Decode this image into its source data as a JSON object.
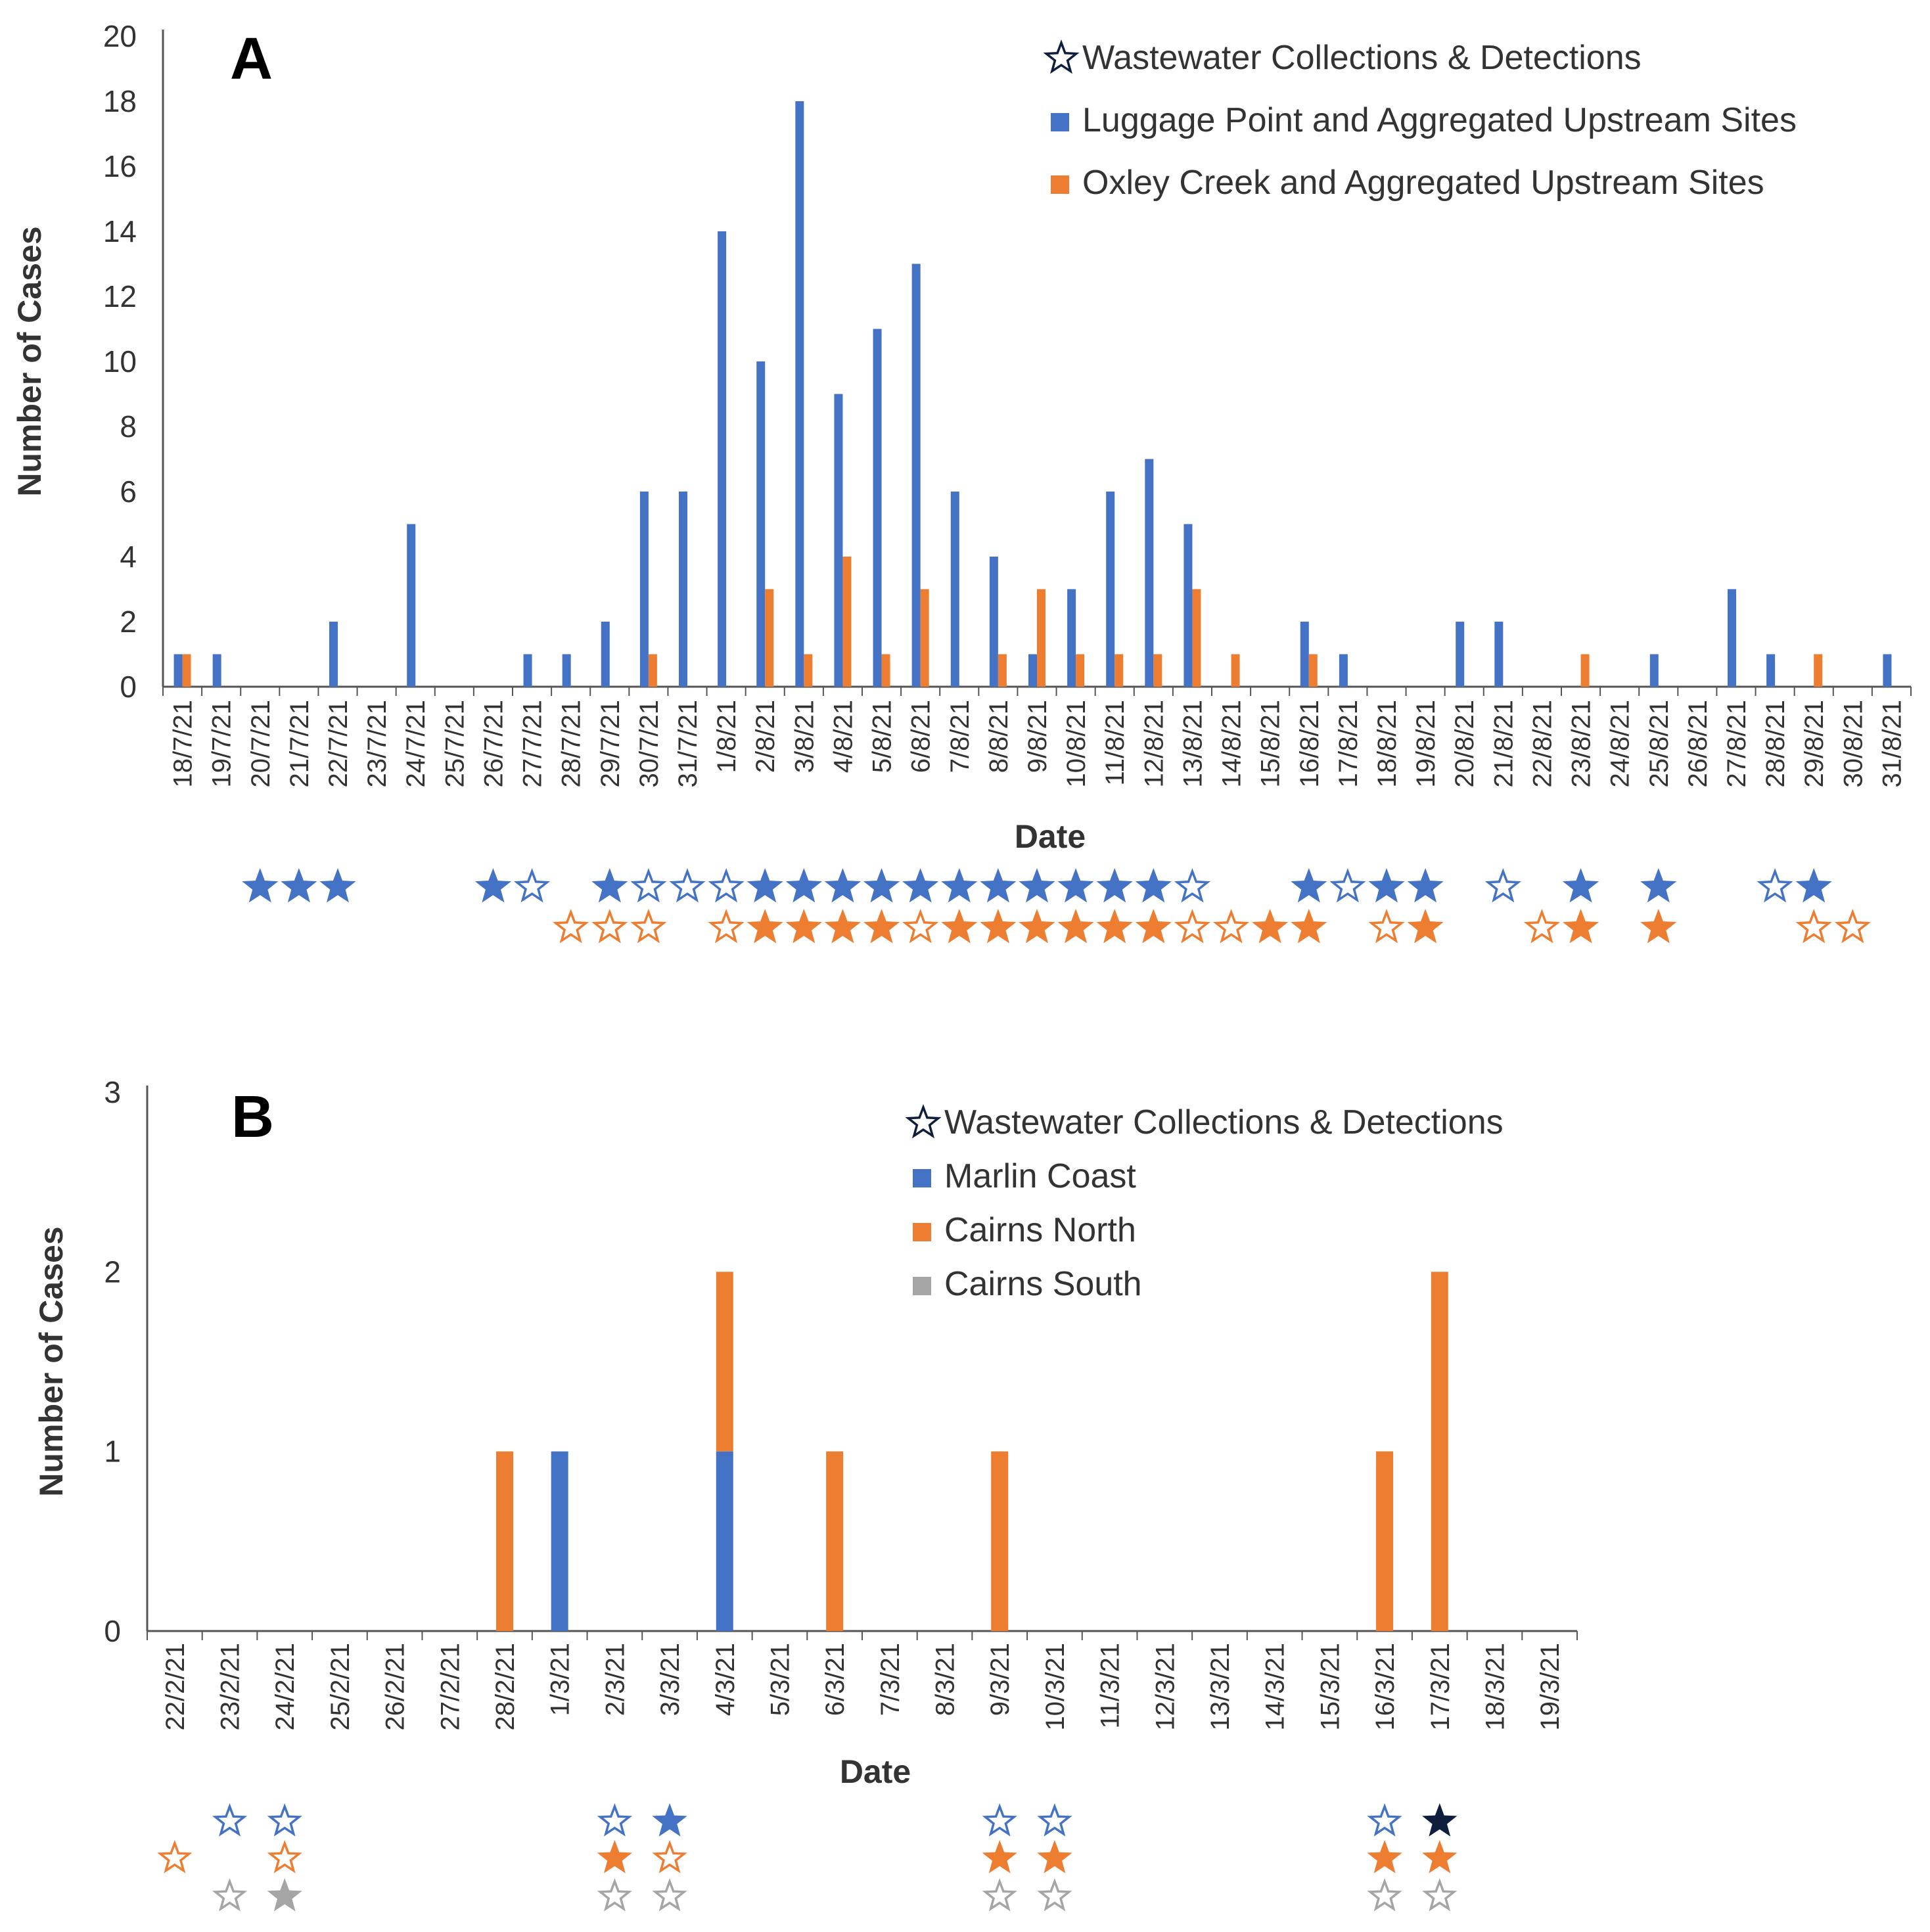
{
  "colors": {
    "blue": "#4472C4",
    "orange": "#ED7D31",
    "gray": "#A5A5A5",
    "navy": "#0F1E3C",
    "axis": "#555555",
    "text": "#333333"
  },
  "chart_data": [
    {
      "id": "A",
      "type": "bar",
      "panel_label": "A",
      "ylabel": "Number of Cases",
      "xlabel": "Date",
      "ylim": [
        0,
        20
      ],
      "yticks": [
        0,
        2,
        4,
        6,
        8,
        10,
        12,
        14,
        16,
        18,
        20
      ],
      "categories": [
        "18/7/21",
        "19/7/21",
        "20/7/21",
        "21/7/21",
        "22/7/21",
        "23/7/21",
        "24/7/21",
        "25/7/21",
        "26/7/21",
        "27/7/21",
        "28/7/21",
        "29/7/21",
        "30/7/21",
        "31/7/21",
        "1/8/21",
        "2/8/21",
        "3/8/21",
        "4/8/21",
        "5/8/21",
        "6/8/21",
        "7/8/21",
        "8/8/21",
        "9/8/21",
        "10/8/21",
        "11/8/21",
        "12/8/21",
        "13/8/21",
        "14/8/21",
        "15/8/21",
        "16/8/21",
        "17/8/21",
        "18/8/21",
        "19/8/21",
        "20/8/21",
        "21/8/21",
        "22/8/21",
        "23/8/21",
        "24/8/21",
        "25/8/21",
        "26/8/21",
        "27/8/21",
        "28/8/21",
        "29/8/21",
        "30/8/21",
        "31/8/21"
      ],
      "legend_title": "Wastewater Collections & Detections",
      "series": [
        {
          "name": "Luggage Point and Aggregated Upstream Sites",
          "color": "blue",
          "values": [
            1,
            1,
            0,
            0,
            2,
            0,
            5,
            0,
            0,
            1,
            1,
            2,
            6,
            6,
            14,
            10,
            18,
            9,
            11,
            13,
            6,
            4,
            1,
            3,
            6,
            7,
            5,
            0,
            0,
            2,
            1,
            0,
            0,
            2,
            2,
            0,
            0,
            0,
            1,
            0,
            3,
            1,
            0,
            0,
            1
          ]
        },
        {
          "name": "Oxley Creek and Aggregated Upstream Sites",
          "color": "orange",
          "values": [
            1,
            0,
            0,
            0,
            0,
            0,
            0,
            0,
            0,
            0,
            0,
            0,
            1,
            0,
            0,
            3,
            1,
            4,
            1,
            3,
            0,
            1,
            3,
            1,
            1,
            1,
            3,
            1,
            0,
            1,
            0,
            0,
            0,
            0,
            0,
            0,
            1,
            0,
            0,
            0,
            0,
            0,
            1,
            0,
            0
          ]
        }
      ],
      "star_rows": [
        {
          "series": "Luggage Point and Aggregated Upstream Sites",
          "color": "blue",
          "stars": [
            [
              2,
              "detected"
            ],
            [
              3,
              "detected"
            ],
            [
              4,
              "detected"
            ],
            [
              8,
              "detected"
            ],
            [
              9,
              "collected"
            ],
            [
              11,
              "detected"
            ],
            [
              12,
              "collected"
            ],
            [
              13,
              "collected"
            ],
            [
              14,
              "collected"
            ],
            [
              15,
              "detected"
            ],
            [
              16,
              "detected"
            ],
            [
              17,
              "detected"
            ],
            [
              18,
              "detected"
            ],
            [
              19,
              "detected"
            ],
            [
              20,
              "detected"
            ],
            [
              21,
              "detected"
            ],
            [
              22,
              "detected"
            ],
            [
              23,
              "detected"
            ],
            [
              24,
              "detected"
            ],
            [
              25,
              "detected"
            ],
            [
              26,
              "collected"
            ],
            [
              29,
              "detected"
            ],
            [
              30,
              "collected"
            ],
            [
              31,
              "detected"
            ],
            [
              32,
              "detected"
            ],
            [
              34,
              "collected"
            ],
            [
              36,
              "detected"
            ],
            [
              38,
              "detected"
            ],
            [
              41,
              "collected"
            ],
            [
              42,
              "detected"
            ]
          ]
        },
        {
          "series": "Oxley Creek and Aggregated Upstream Sites",
          "color": "orange",
          "stars": [
            [
              10,
              "collected"
            ],
            [
              11,
              "collected"
            ],
            [
              12,
              "collected"
            ],
            [
              14,
              "collected"
            ],
            [
              15,
              "detected"
            ],
            [
              16,
              "detected"
            ],
            [
              17,
              "detected"
            ],
            [
              18,
              "detected"
            ],
            [
              19,
              "collected"
            ],
            [
              20,
              "detected"
            ],
            [
              21,
              "detected"
            ],
            [
              22,
              "detected"
            ],
            [
              23,
              "detected"
            ],
            [
              24,
              "detected"
            ],
            [
              25,
              "detected"
            ],
            [
              26,
              "collected"
            ],
            [
              27,
              "collected"
            ],
            [
              28,
              "detected"
            ],
            [
              29,
              "detected"
            ],
            [
              31,
              "collected"
            ],
            [
              32,
              "detected"
            ],
            [
              35,
              "collected"
            ],
            [
              36,
              "detected"
            ],
            [
              38,
              "detected"
            ],
            [
              42,
              "collected"
            ],
            [
              43,
              "collected"
            ]
          ]
        }
      ]
    },
    {
      "id": "B",
      "type": "bar",
      "stacked": true,
      "panel_label": "B",
      "ylabel": "Number of Cases",
      "xlabel": "Date",
      "ylim": [
        0,
        3
      ],
      "yticks": [
        0,
        1,
        2,
        3
      ],
      "categories": [
        "22/2/21",
        "23/2/21",
        "24/2/21",
        "25/2/21",
        "26/2/21",
        "27/2/21",
        "28/2/21",
        "1/3/21",
        "2/3/21",
        "3/3/21",
        "4/3/21",
        "5/3/21",
        "6/3/21",
        "7/3/21",
        "8/3/21",
        "9/3/21",
        "10/3/21",
        "11/3/21",
        "12/3/21",
        "13/3/21",
        "14/3/21",
        "15/3/21",
        "16/3/21",
        "17/3/21",
        "18/3/21",
        "19/3/21"
      ],
      "legend_title": "Wastewater Collections & Detections",
      "series": [
        {
          "name": "Marlin Coast",
          "color": "blue",
          "values": [
            0,
            0,
            0,
            0,
            0,
            0,
            0,
            1,
            0,
            0,
            1,
            0,
            0,
            0,
            0,
            0,
            0,
            0,
            0,
            0,
            0,
            0,
            0,
            0,
            0,
            0
          ]
        },
        {
          "name": "Cairns North",
          "color": "orange",
          "values": [
            0,
            0,
            0,
            0,
            0,
            0,
            1,
            0,
            0,
            0,
            1,
            0,
            1,
            0,
            0,
            1,
            0,
            0,
            0,
            0,
            0,
            0,
            1,
            2,
            0,
            0
          ]
        },
        {
          "name": "Cairns South",
          "color": "gray",
          "values": [
            0,
            0,
            0,
            0,
            0,
            0,
            0,
            0,
            0,
            0,
            0,
            0,
            0,
            0,
            0,
            0,
            0,
            0,
            0,
            0,
            0,
            0,
            0,
            0,
            0,
            0
          ]
        }
      ],
      "star_rows": [
        {
          "series": "Marlin Coast",
          "color": "blue",
          "stars": [
            [
              1,
              "collected"
            ],
            [
              2,
              "collected"
            ],
            [
              8,
              "collected"
            ],
            [
              9,
              "detected"
            ],
            [
              15,
              "collected"
            ],
            [
              16,
              "collected"
            ],
            [
              22,
              "collected"
            ],
            [
              23,
              "detected-navy"
            ]
          ]
        },
        {
          "series": "Cairns North",
          "color": "orange",
          "stars": [
            [
              0,
              "collected"
            ],
            [
              2,
              "collected"
            ],
            [
              8,
              "detected"
            ],
            [
              9,
              "collected"
            ],
            [
              15,
              "detected"
            ],
            [
              16,
              "detected"
            ],
            [
              22,
              "detected"
            ],
            [
              23,
              "detected"
            ]
          ]
        },
        {
          "series": "Cairns South",
          "color": "gray",
          "stars": [
            [
              1,
              "collected"
            ],
            [
              2,
              "detected"
            ],
            [
              8,
              "collected"
            ],
            [
              9,
              "collected"
            ],
            [
              15,
              "collected"
            ],
            [
              16,
              "collected"
            ],
            [
              22,
              "collected"
            ],
            [
              23,
              "collected"
            ]
          ]
        }
      ]
    }
  ]
}
